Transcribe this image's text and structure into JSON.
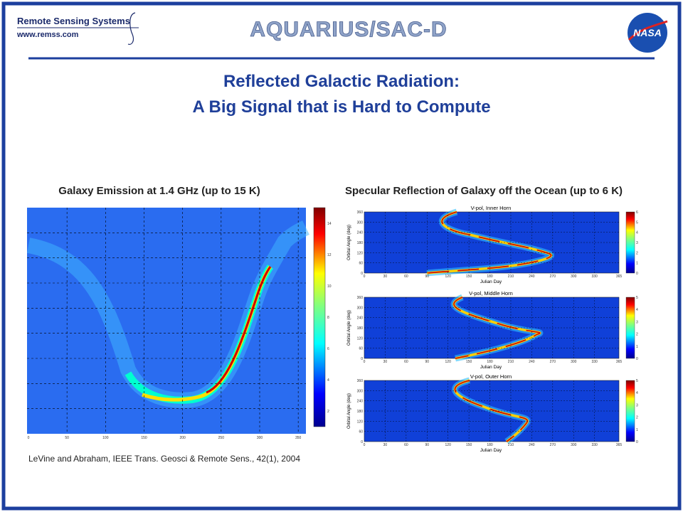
{
  "header": {
    "logo_text": "Remote Sensing Systems",
    "logo_url": "www.remss.com",
    "mission": "AQUARIUS/SAC-D",
    "agency": "NASA"
  },
  "title": [
    "Reflected Galactic Radiation:",
    "A Big Signal that is Hard to Compute"
  ],
  "figures": {
    "left": {
      "caption": "Galaxy Emission at 1.4 GHz (up to 15 K)",
      "xlim": [
        0,
        360
      ],
      "xticks": [
        0,
        50,
        100,
        150,
        200,
        250,
        300,
        350
      ],
      "colorbar_lim": [
        1,
        15
      ],
      "colorbar_ticks": [
        2,
        4,
        6,
        8,
        10,
        12,
        14
      ]
    },
    "right": {
      "caption": "Specular Reflection of Galaxy off the Ocean (up to 6 K)",
      "xlim": [
        0,
        365
      ],
      "xticks": [
        0,
        30,
        60,
        90,
        120,
        150,
        180,
        210,
        240,
        270,
        300,
        330,
        365
      ],
      "ylim": [
        0,
        360
      ],
      "yticks": [
        0,
        60,
        120,
        180,
        240,
        300,
        360
      ],
      "panels": [
        {
          "title": "V-pol, Inner Horn",
          "xlabel": "Julian Day",
          "ylabel": "Orbital Angle (deg)",
          "colorbar_lim": [
            0,
            6
          ],
          "colorbar_ticks": [
            0,
            1,
            2,
            3,
            4,
            5,
            6
          ]
        },
        {
          "title": "V-pol, Middle Horn",
          "xlabel": "Julian Day",
          "ylabel": "Orbital Angle (deg)",
          "colorbar_lim": [
            0,
            5
          ],
          "colorbar_ticks": [
            0,
            1,
            2,
            3,
            4,
            5
          ]
        },
        {
          "title": "V-pol, Outer Horn",
          "xlabel": "Julian Day",
          "ylabel": "Orbital Angle (deg)",
          "colorbar_lim": [
            0,
            5
          ],
          "colorbar_ticks": [
            0,
            1,
            2,
            3,
            4,
            5
          ]
        }
      ]
    }
  },
  "citation": "LeVine and Abraham, IEEE Trans. Geosci & Remote Sens., 42(1), 2004"
}
